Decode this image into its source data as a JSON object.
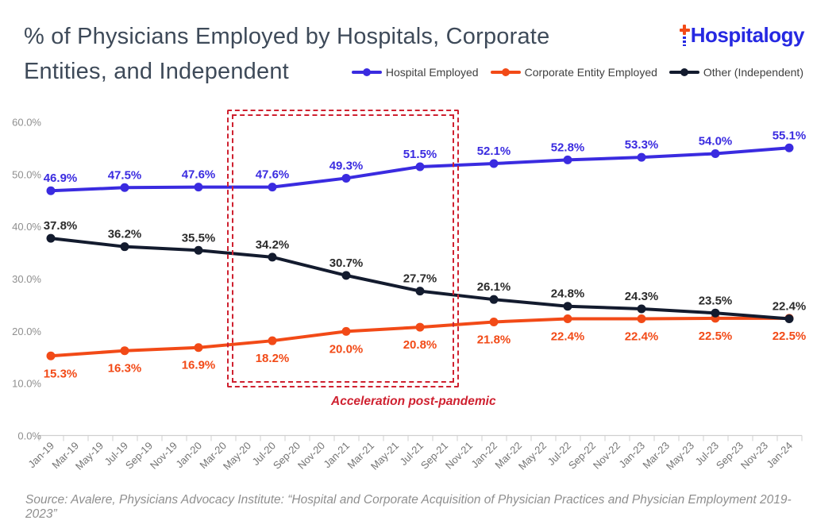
{
  "header": {
    "title_line1": "% of Physicians Employed by Hospitals, Corporate",
    "title_line2": "Entities, and Independent",
    "logo_text": "Hospitalogy"
  },
  "legend": [
    {
      "label": "Hospital Employed",
      "color": "#3a2be0"
    },
    {
      "label": "Corporate Entity Employed",
      "color": "#f24a17"
    },
    {
      "label": "Other (Independent)",
      "color": "#131b2e"
    }
  ],
  "annotation": {
    "label": "Acceleration post-pandemic",
    "color": "#cf2130"
  },
  "source": "Source: Avalere, Physicians Advocacy Institute: “Hospital and Corporate Acquisition of Physician Practices and Physician Employment 2019-2023”",
  "chart_data": {
    "type": "line",
    "title": "% of Physicians Employed by Hospitals, Corporate Entities, and Independent",
    "xlabel": "",
    "ylabel": "",
    "ylim": [
      0,
      60
    ],
    "y_ticks": [
      "0.0%",
      "10.0%",
      "20.0%",
      "30.0%",
      "40.0%",
      "50.0%",
      "60.0%"
    ],
    "grid": false,
    "legend_position": "top-right",
    "x_tick_labels": [
      "Jan-19",
      "Mar-19",
      "May-19",
      "Jul-19",
      "Sep-19",
      "Nov-19",
      "Jan-20",
      "Mar-20",
      "May-20",
      "Jul-20",
      "Sep-20",
      "Nov-20",
      "Jan-21",
      "Mar-21",
      "May-21",
      "Jul-21",
      "Sep-21",
      "Nov-21",
      "Jan-22",
      "Mar-22",
      "May-22",
      "Jul-22",
      "Sep-22",
      "Nov-22",
      "Jan-23",
      "Mar-23",
      "May-23",
      "Jul-23",
      "Sep-23",
      "Nov-23",
      "Jan-24"
    ],
    "categories": [
      "Jan-19",
      "Jul-19",
      "Jan-20",
      "Jul-20",
      "Jan-21",
      "Jul-21",
      "Jan-22",
      "Jul-22",
      "Jan-23",
      "Jul-23",
      "Jan-24"
    ],
    "series": [
      {
        "name": "Hospital Employed",
        "color": "#3a2be0",
        "label_position": "above",
        "values": [
          46.9,
          47.5,
          47.6,
          47.6,
          49.3,
          51.5,
          52.1,
          52.8,
          53.3,
          54.0,
          55.1
        ]
      },
      {
        "name": "Corporate Entity Employed",
        "color": "#f24a17",
        "label_position": "below",
        "values": [
          15.3,
          16.3,
          16.9,
          18.2,
          20.0,
          20.8,
          21.8,
          22.4,
          22.4,
          22.5,
          22.5
        ]
      },
      {
        "name": "Other (Independent)",
        "color": "#131b2e",
        "label_color": "#2b2b2b",
        "label_position": "above",
        "values": [
          37.8,
          36.2,
          35.5,
          34.2,
          30.7,
          27.7,
          26.1,
          24.8,
          24.3,
          23.5,
          22.4
        ]
      }
    ],
    "annotation_box": {
      "label": "Acceleration post-pandemic",
      "x_range": [
        "Apr-20",
        "Oct-21"
      ]
    }
  }
}
